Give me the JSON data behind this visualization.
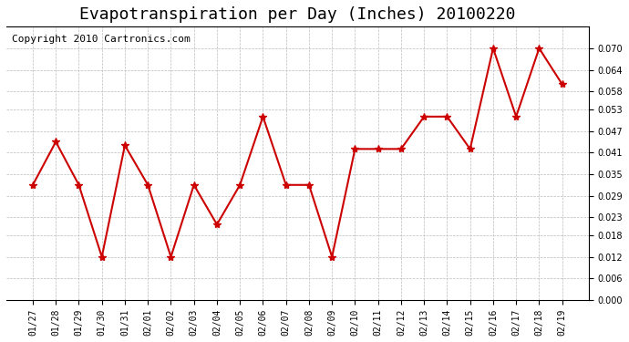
{
  "title": "Evapotranspiration per Day (Inches) 20100220",
  "copyright_text": "Copyright 2010 Cartronics.com",
  "x_labels": [
    "01/27",
    "01/28",
    "01/29",
    "01/30",
    "01/31",
    "02/01",
    "02/02",
    "02/03",
    "02/04",
    "02/05",
    "02/06",
    "02/07",
    "02/08",
    "02/09",
    "02/10",
    "02/11",
    "02/12",
    "02/13",
    "02/14",
    "02/15",
    "02/16",
    "02/17",
    "02/18",
    "02/19"
  ],
  "y_values": [
    0.032,
    0.044,
    0.032,
    0.012,
    0.043,
    0.032,
    0.012,
    0.032,
    0.021,
    0.032,
    0.051,
    0.032,
    0.032,
    0.012,
    0.042,
    0.042,
    0.042,
    0.051,
    0.051,
    0.042,
    0.07,
    0.051,
    0.07,
    0.06
  ],
  "line_color": "#cc0000",
  "marker": "*",
  "marker_size": 6,
  "ylim": [
    0.0,
    0.076
  ],
  "yticks": [
    0.0,
    0.006,
    0.012,
    0.018,
    0.023,
    0.029,
    0.035,
    0.041,
    0.047,
    0.053,
    0.058,
    0.064,
    0.07
  ],
  "background_color": "#ffffff",
  "grid_color": "#bbbbbb",
  "title_fontsize": 13,
  "copyright_fontsize": 8
}
